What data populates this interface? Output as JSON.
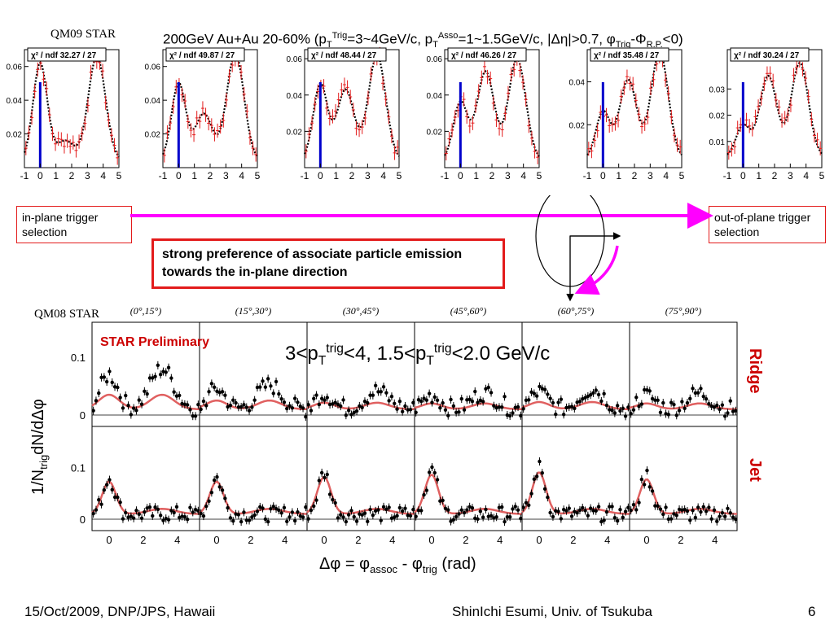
{
  "header": {
    "tag_top": "QM09 STAR",
    "title_prefix": "200GeV Au+Au 20-60% (p",
    "title_full": "200GeV Au+Au 20-60% (pTTrig=3~4GeV/c, pTAsso=1~1.5GeV/c, |Δη|>0.7, φTrig-ΦR.P.<0)",
    "tag_bottom": "QM08 STAR"
  },
  "labels": {
    "in_plane": "in-plane trigger selection",
    "out_plane": "out-of-plane trigger selection",
    "preference": "strong preference of associate particle emission towards the in-plane direction",
    "preliminary": "STAR Preliminary",
    "pt_range": "3<pTtrig<4, 1.5<pTtrig<2.0 GeV/c",
    "ridge": "Ridge",
    "jet": "Jet",
    "ylabel": "1/NtrigdN/dΔφ",
    "xlabel": "Δφ = φassoc - φtrig (rad)"
  },
  "footer": {
    "left": "15/Oct/2009, DNP/JPS, Hawaii",
    "center": "ShinIchi Esumi, Univ. of Tsukuba",
    "page": "6"
  },
  "colors": {
    "arrow": "#ff00ff",
    "frame": "#e31b1b",
    "fit": "#000000",
    "data": "#e31b1b",
    "marker": "#0000cc",
    "ridge_red": "#c00000"
  },
  "chart_data": [
    {
      "type": "scatter",
      "title": "QM09 in-plane to out-of-plane correlations",
      "xlim": [
        -1,
        5
      ],
      "xticks": [
        -1,
        0,
        1,
        2,
        3,
        4,
        5
      ],
      "panels": [
        {
          "chi2": "χ² / ndf  32.27 / 27",
          "yticks": [
            0.02,
            0.04,
            0.06
          ],
          "ymax": 0.07,
          "near": 0.058,
          "mid": 0.012,
          "away": 0.062
        },
        {
          "chi2": "χ² / ndf  49.87 / 27",
          "yticks": [
            0.02,
            0.04,
            0.06
          ],
          "ymax": 0.07,
          "near": 0.046,
          "mid": 0.028,
          "away": 0.064
        },
        {
          "chi2": "χ² / ndf  48.44 / 27",
          "yticks": [
            0.02,
            0.04,
            0.06
          ],
          "ymax": 0.065,
          "near": 0.042,
          "mid": 0.039,
          "away": 0.058
        },
        {
          "chi2": "χ² / ndf  46.26 / 27",
          "yticks": [
            0.02,
            0.04,
            0.06
          ],
          "ymax": 0.065,
          "near": 0.032,
          "mid": 0.049,
          "away": 0.056
        },
        {
          "chi2": "χ² / ndf  35.48 / 27",
          "yticks": [
            0.02,
            0.04
          ],
          "ymax": 0.055,
          "near": 0.022,
          "mid": 0.037,
          "away": 0.05
        },
        {
          "chi2": "χ² / ndf  30.24 / 27",
          "yticks": [
            0.01,
            0.02,
            0.03
          ],
          "ymax": 0.045,
          "near": 0.012,
          "mid": 0.031,
          "away": 0.036
        }
      ]
    },
    {
      "type": "scatter",
      "title": "QM08 Ridge / Jet",
      "angle_bins": [
        "(0°,15°)",
        "(15°,30°)",
        "(30°,45°)",
        "(45°,60°)",
        "(60°,75°)",
        "(75°,90°)"
      ],
      "xticks": [
        0,
        2,
        4
      ],
      "yticks": [
        0,
        0.1
      ],
      "ridge_amp": [
        0.1,
        0.06,
        0.045,
        0.04,
        0.05,
        0.04
      ],
      "jet_amp": [
        0.07,
        0.07,
        0.08,
        0.085,
        0.09,
        0.075
      ]
    }
  ]
}
